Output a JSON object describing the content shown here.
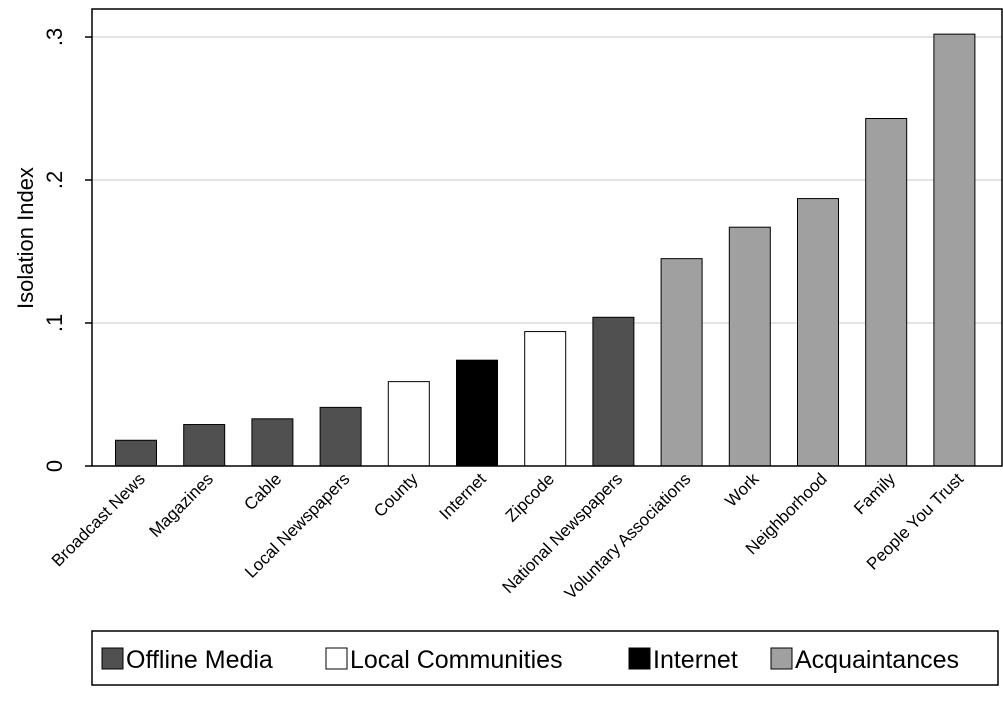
{
  "chart_data": {
    "type": "bar",
    "title": "",
    "xlabel": "",
    "ylabel": "Isolation Index",
    "ylim": [
      0,
      0.32
    ],
    "yticks": [
      {
        "value": 0,
        "label": "0"
      },
      {
        "value": 0.1,
        "label": ".1"
      },
      {
        "value": 0.2,
        "label": ".2"
      },
      {
        "value": 0.3,
        "label": ".3"
      }
    ],
    "grid": true,
    "legend_position": "bottom",
    "categories": [
      "Broadcast News",
      "Magazines",
      "Cable",
      "Local Newspapers",
      "County",
      "Internet",
      "Zipcode",
      "National Newspapers",
      "Voluntary Associations",
      "Work",
      "Neighborhood",
      "Family",
      "People You Trust"
    ],
    "values": [
      0.018,
      0.029,
      0.033,
      0.041,
      0.059,
      0.074,
      0.094,
      0.104,
      0.145,
      0.167,
      0.187,
      0.243,
      0.302
    ],
    "groups": [
      0,
      0,
      0,
      0,
      1,
      2,
      1,
      0,
      3,
      3,
      3,
      3,
      3
    ],
    "legend": [
      {
        "name": "Offline Media",
        "color": "#505050"
      },
      {
        "name": "Local Communities",
        "color": "#ffffff"
      },
      {
        "name": "Internet",
        "color": "#000000"
      },
      {
        "name": "Acquaintances",
        "color": "#a0a0a0"
      }
    ]
  }
}
